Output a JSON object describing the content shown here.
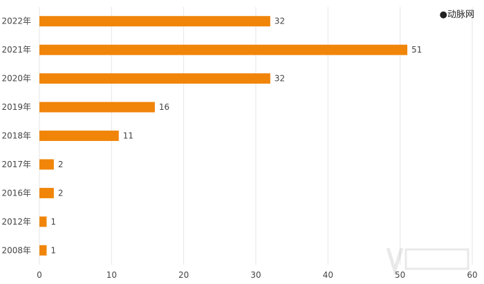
{
  "brand": {
    "label": "●动脉网",
    "accent": "#f0850a"
  },
  "chart_data": {
    "type": "bar",
    "orientation": "horizontal",
    "categories": [
      "2022年",
      "2021年",
      "2020年",
      "2019年",
      "2018年",
      "2017年",
      "2016年",
      "2012年",
      "2008年"
    ],
    "values": [
      32,
      51,
      32,
      16,
      11,
      2,
      2,
      1,
      1
    ],
    "title": "",
    "xlabel": "",
    "ylabel": "",
    "xlim": [
      0,
      60
    ],
    "xticks": [
      0,
      10,
      20,
      30,
      40,
      50,
      60
    ],
    "grid": "vertical",
    "legend": "none",
    "bar_color": "#f0850a",
    "data_labels": true
  }
}
